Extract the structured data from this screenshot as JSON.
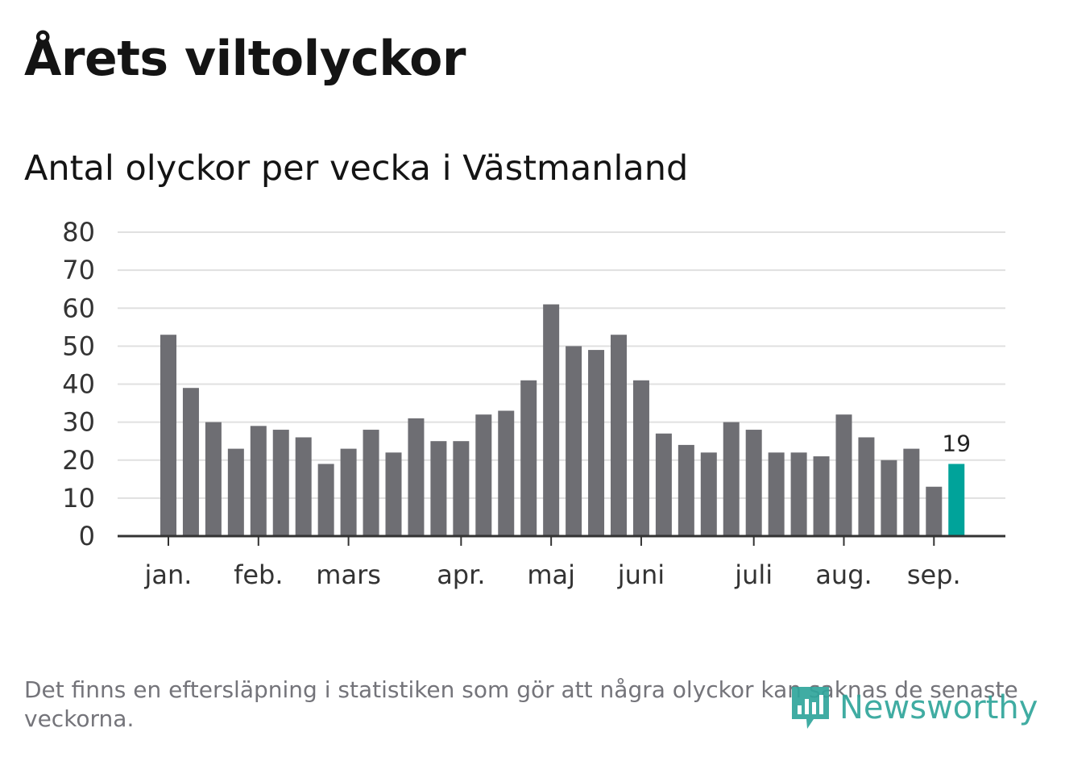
{
  "title": "Årets viltolyckor",
  "subtitle": "Antal olyckor per vecka i Västmanland",
  "footnote": "Det finns en eftersläpning i statistiken som gör att några olyckor kan saknas de senaste veckorna.",
  "brand": {
    "name": "Newsworthy",
    "icon": "newsworthy-logo-icon",
    "color": "#30a59b"
  },
  "colors": {
    "bar": "#6e6e73",
    "highlight": "#00a39a",
    "grid": "#e0e0e0",
    "axis": "#333333"
  },
  "chart_data": {
    "type": "bar",
    "title": "Antal olyckor per vecka i Västmanland",
    "xlabel": "",
    "ylabel": "",
    "ylim": [
      0,
      80
    ],
    "yticks": [
      0,
      10,
      20,
      30,
      40,
      50,
      60,
      70,
      80
    ],
    "grid": true,
    "values": [
      53,
      39,
      30,
      23,
      29,
      28,
      26,
      19,
      23,
      28,
      22,
      31,
      25,
      25,
      32,
      33,
      41,
      61,
      50,
      49,
      53,
      41,
      27,
      24,
      22,
      30,
      28,
      22,
      22,
      21,
      32,
      26,
      20,
      23,
      13,
      19
    ],
    "highlight_index": 35,
    "data_labels": [
      {
        "index": 35,
        "text": "19"
      }
    ],
    "month_ticks": [
      {
        "label": "jan.",
        "week": 0
      },
      {
        "label": "feb.",
        "week": 4
      },
      {
        "label": "mars",
        "week": 8
      },
      {
        "label": "apr.",
        "week": 13
      },
      {
        "label": "maj",
        "week": 17
      },
      {
        "label": "juni",
        "week": 21
      },
      {
        "label": "juli",
        "week": 26
      },
      {
        "label": "aug.",
        "week": 30
      },
      {
        "label": "sep.",
        "week": 34
      }
    ]
  }
}
